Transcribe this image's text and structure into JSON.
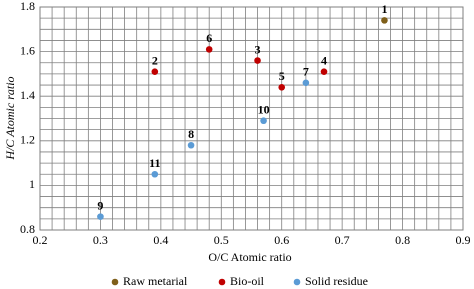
{
  "chart_data": {
    "type": "scatter",
    "xlabel": "O/C Atomic ratio",
    "ylabel": "H/C Atomic ratio",
    "xlim": [
      0.2,
      0.9
    ],
    "ylim": [
      0.8,
      1.8
    ],
    "xticks": [
      0.2,
      0.3,
      0.4,
      0.5,
      0.6,
      0.7,
      0.8,
      0.9
    ],
    "yticks": [
      0.8,
      1,
      1.2,
      1.4,
      1.6,
      1.8
    ],
    "xgrid": [
      0.2,
      0.22,
      0.24,
      0.26,
      0.28,
      0.3,
      0.32,
      0.34,
      0.36,
      0.38,
      0.4,
      0.42,
      0.44,
      0.46,
      0.48,
      0.5,
      0.52,
      0.54,
      0.56,
      0.58,
      0.6,
      0.62,
      0.64,
      0.66,
      0.68,
      0.7,
      0.72,
      0.74,
      0.76,
      0.78,
      0.8,
      0.82,
      0.84,
      0.86,
      0.88,
      0.9
    ],
    "ygrid": [
      0.8,
      0.85,
      0.9,
      0.95,
      1,
      1.05,
      1.1,
      1.15,
      1.2,
      1.25,
      1.3,
      1.35,
      1.4,
      1.45,
      1.5,
      1.55,
      1.6,
      1.65,
      1.7,
      1.75,
      1.8
    ],
    "legend": "bottom",
    "series": [
      {
        "name": "Raw metarial",
        "color": "#7f5f1a",
        "x": [
          0.77
        ],
        "y": [
          1.74
        ],
        "labels": [
          "1"
        ]
      },
      {
        "name": "Bio-oil",
        "color": "#c00000",
        "x": [
          0.39,
          0.56,
          0.67,
          0.6,
          0.48
        ],
        "y": [
          1.51,
          1.56,
          1.51,
          1.44,
          1.61
        ],
        "labels": [
          "2",
          "3",
          "4",
          "5",
          "6"
        ]
      },
      {
        "name": "Solid residue",
        "color": "#5b9bd5",
        "x": [
          0.64,
          0.45,
          0.3,
          0.57,
          0.39
        ],
        "y": [
          1.46,
          1.18,
          0.86,
          1.29,
          1.05
        ],
        "labels": [
          "7",
          "8",
          "9",
          "10",
          "11"
        ]
      }
    ]
  }
}
